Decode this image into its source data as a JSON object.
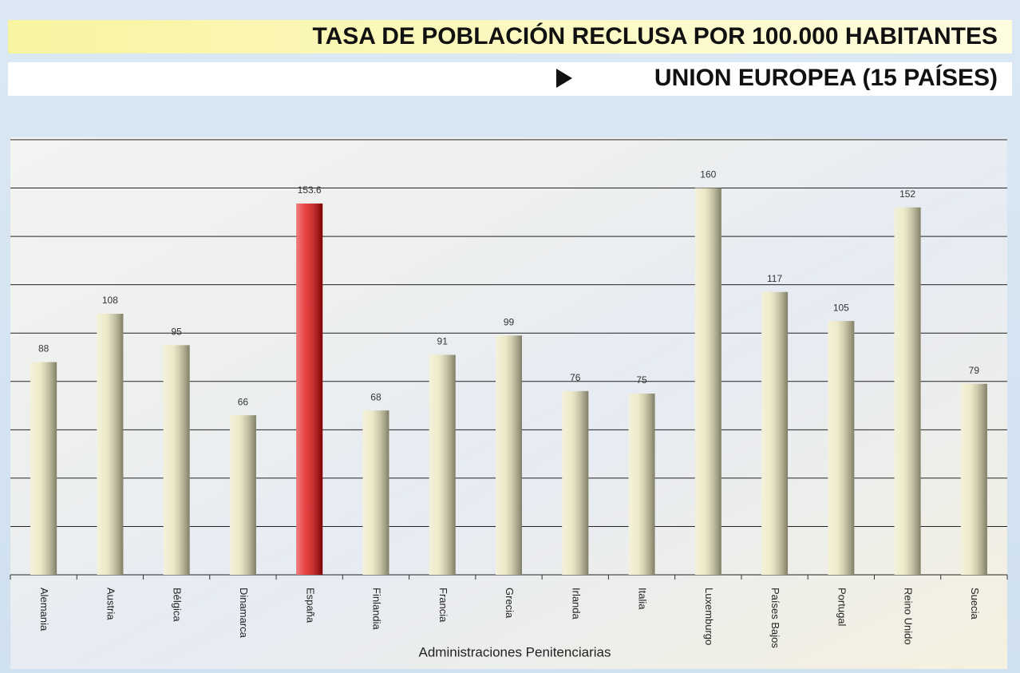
{
  "chart_data": {
    "type": "bar",
    "title": "TASA DE POBLACIÓN RECLUSA POR 100.000 HABITANTES",
    "subtitle": "UNION EUROPEA (15 PAÍSES)",
    "x_label": "Administraciones Penitenciarias",
    "categories": [
      "Alemania",
      "Austria",
      "Bélgica",
      "Dinamarca",
      "España",
      "Finlandia",
      "Francia",
      "Grecia",
      "Irlanda",
      "Italia",
      "Luxemburgo",
      "Países Bajos",
      "Portugal",
      "Reino Unido",
      "Suecia"
    ],
    "values": [
      88,
      108,
      95,
      66,
      153.6,
      68,
      91,
      99,
      76,
      75,
      160,
      117,
      105,
      152,
      79
    ],
    "colors": [
      "#e8e4b8",
      "#e8e4b8",
      "#e8e4b8",
      "#e8e4b8",
      "#e00000",
      "#e8e4b8",
      "#e8e4b8",
      "#e8e4b8",
      "#e8e4b8",
      "#e8e4b8",
      "#e8e4b8",
      "#e8e4b8",
      "#e8e4b8",
      "#e8e4b8",
      "#e8e4b8"
    ],
    "ylim": [
      0,
      180
    ],
    "yticks": [
      0,
      20,
      40,
      60,
      80,
      100,
      120,
      140,
      160,
      180
    ],
    "grid": true
  }
}
